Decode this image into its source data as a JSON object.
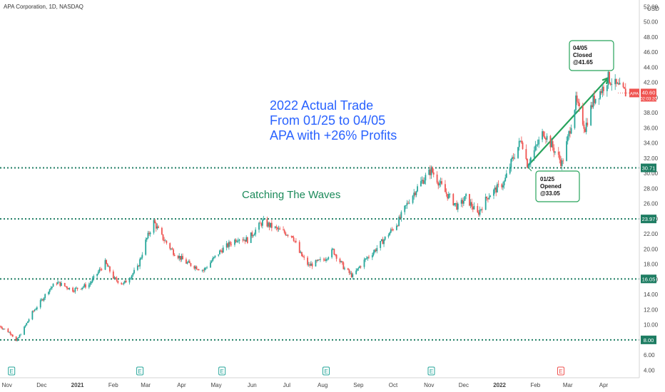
{
  "chart_data": {
    "type": "candlestick",
    "title": "APA Corporation, 1D, NASDAQ",
    "currency": "USD",
    "ticker": "APA",
    "last_price": "40.60",
    "countdown": "02:03:20",
    "x_start": "2020-10-26",
    "x_end": "2022-04-22",
    "ylim": [
      3,
      52.5
    ],
    "y_ticks": [
      "4.00",
      "6.00",
      "8.00",
      "10.00",
      "12.00",
      "14.00",
      "16.00",
      "18.00",
      "20.00",
      "22.00",
      "24.00",
      "26.00",
      "28.00",
      "30.00",
      "32.00",
      "34.00",
      "36.00",
      "38.00",
      "40.00",
      "42.00",
      "44.00",
      "46.00",
      "48.00",
      "50.00",
      "52.00"
    ],
    "x_ticks": [
      {
        "date": "2020-11-01",
        "label": "Nov",
        "bold": false
      },
      {
        "date": "2020-12-01",
        "label": "Dec",
        "bold": false
      },
      {
        "date": "2021-01-01",
        "label": "2021",
        "bold": true
      },
      {
        "date": "2021-02-01",
        "label": "Feb",
        "bold": false
      },
      {
        "date": "2021-03-01",
        "label": "Mar",
        "bold": false
      },
      {
        "date": "2021-04-01",
        "label": "Apr",
        "bold": false
      },
      {
        "date": "2021-05-01",
        "label": "May",
        "bold": false
      },
      {
        "date": "2021-06-01",
        "label": "Jun",
        "bold": false
      },
      {
        "date": "2021-07-01",
        "label": "Jul",
        "bold": false
      },
      {
        "date": "2021-08-01",
        "label": "Aug",
        "bold": false
      },
      {
        "date": "2021-09-01",
        "label": "Sep",
        "bold": false
      },
      {
        "date": "2021-10-01",
        "label": "Oct",
        "bold": false
      },
      {
        "date": "2021-11-01",
        "label": "Nov",
        "bold": false
      },
      {
        "date": "2021-12-01",
        "label": "Dec",
        "bold": false
      },
      {
        "date": "2022-01-01",
        "label": "2022",
        "bold": true
      },
      {
        "date": "2022-02-01",
        "label": "Feb",
        "bold": false
      },
      {
        "date": "2022-03-01",
        "label": "Mar",
        "bold": false
      },
      {
        "date": "2022-04-01",
        "label": "Apr",
        "bold": false
      }
    ],
    "horizontal_levels": [
      {
        "value": 30.71,
        "label": "30.71"
      },
      {
        "value": 23.97,
        "label": "23.97"
      },
      {
        "value": 16.05,
        "label": "16.05"
      },
      {
        "value": 8.0,
        "label": "8.00"
      }
    ],
    "earnings_markers": [
      {
        "date": "2020-11-05",
        "label": "E",
        "color": "#26a69a"
      },
      {
        "date": "2021-02-24",
        "label": "E",
        "color": "#26a69a"
      },
      {
        "date": "2021-05-06",
        "label": "E",
        "color": "#26a69a"
      },
      {
        "date": "2021-08-04",
        "label": "E",
        "color": "#26a69a"
      },
      {
        "date": "2021-11-03",
        "label": "E",
        "color": "#26a69a"
      },
      {
        "date": "2022-02-23",
        "label": "E",
        "color": "#ef5350"
      }
    ],
    "annotations": {
      "headline": [
        "2022 Actual Trade",
        "From 01/25 to 04/05",
        "APA with +26% Profits"
      ],
      "subtitle": "Catching The Waves",
      "open_box": [
        "01/25",
        "Opened",
        "@33.05"
      ],
      "close_box": [
        "04/05",
        "Closed",
        "@41.65"
      ],
      "trade_line": {
        "from": {
          "date": "2022-01-25",
          "value": 30.9
        },
        "to": {
          "date": "2022-04-05",
          "value": 42.6
        }
      }
    },
    "price_path": [
      [
        "2020-10-26",
        9.8
      ],
      [
        "2020-11-05",
        8.8
      ],
      [
        "2020-11-09",
        7.8
      ],
      [
        "2020-11-16",
        9.6
      ],
      [
        "2020-11-23",
        11.6
      ],
      [
        "2020-11-30",
        13.0
      ],
      [
        "2020-12-07",
        14.6
      ],
      [
        "2020-12-14",
        15.6
      ],
      [
        "2020-12-28",
        14.6
      ],
      [
        "2021-01-11",
        15.3
      ],
      [
        "2021-01-25",
        18.2
      ],
      [
        "2021-02-02",
        16.0
      ],
      [
        "2021-02-10",
        15.4
      ],
      [
        "2021-02-22",
        17.5
      ],
      [
        "2021-03-01",
        21.0
      ],
      [
        "2021-03-08",
        23.6
      ],
      [
        "2021-03-15",
        21.6
      ],
      [
        "2021-03-25",
        19.6
      ],
      [
        "2021-04-05",
        18.2
      ],
      [
        "2021-04-20",
        17.2
      ],
      [
        "2021-05-05",
        19.8
      ],
      [
        "2021-05-20",
        21.5
      ],
      [
        "2021-05-28",
        21.2
      ],
      [
        "2021-06-10",
        23.6
      ],
      [
        "2021-06-25",
        22.4
      ],
      [
        "2021-07-06",
        21.8
      ],
      [
        "2021-07-12",
        19.5
      ],
      [
        "2021-07-20",
        17.8
      ],
      [
        "2021-08-02",
        18.6
      ],
      [
        "2021-08-10",
        19.8
      ],
      [
        "2021-08-20",
        17.4
      ],
      [
        "2021-08-27",
        16.4
      ],
      [
        "2021-09-05",
        18.3
      ],
      [
        "2021-09-15",
        19.8
      ],
      [
        "2021-09-25",
        21.6
      ],
      [
        "2021-10-05",
        23.5
      ],
      [
        "2021-10-15",
        26.5
      ],
      [
        "2021-10-25",
        28.8
      ],
      [
        "2021-11-03",
        30.4
      ],
      [
        "2021-11-15",
        27.5
      ],
      [
        "2021-11-26",
        25.5
      ],
      [
        "2021-12-03",
        26.8
      ],
      [
        "2021-12-13",
        24.6
      ],
      [
        "2021-12-22",
        27.0
      ],
      [
        "2022-01-05",
        28.8
      ],
      [
        "2022-01-12",
        31.8
      ],
      [
        "2022-01-20",
        34.5
      ],
      [
        "2022-01-25",
        31.2
      ],
      [
        "2022-02-01",
        33.2
      ],
      [
        "2022-02-08",
        35.5
      ],
      [
        "2022-02-16",
        33.4
      ],
      [
        "2022-02-24",
        31.3
      ],
      [
        "2022-03-01",
        34.5
      ],
      [
        "2022-03-08",
        39.5
      ],
      [
        "2022-03-16",
        36.0
      ],
      [
        "2022-03-23",
        39.6
      ],
      [
        "2022-03-31",
        41.2
      ],
      [
        "2022-04-05",
        42.6
      ],
      [
        "2022-04-12",
        41.5
      ],
      [
        "2022-04-20",
        40.6
      ]
    ]
  }
}
